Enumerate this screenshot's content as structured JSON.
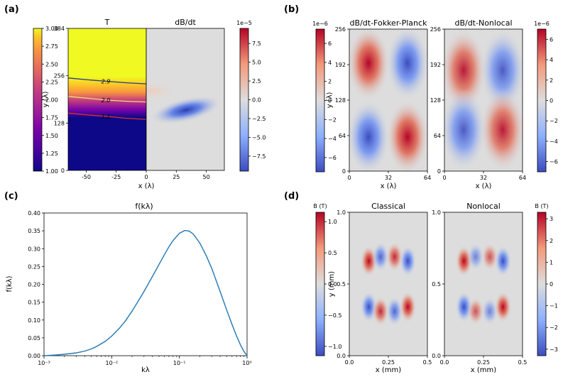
{
  "panel_labels": [
    "(a)",
    "(b)",
    "(c)",
    "(d)"
  ],
  "colors": {
    "line": "#1f77b4",
    "bg_gray": "#dcdcdc",
    "contour_2_9": "#1f3c8c",
    "contour_2_0": "#e8e07a",
    "contour_1_1": "#e03030"
  },
  "chart_data": [
    {
      "panel": "(a)",
      "type": "heatmap",
      "subplots": [
        {
          "title": "T",
          "xlim": [
            -65,
            0
          ],
          "ylim": [
            0,
            384
          ],
          "ylabel": "y (λ)",
          "yticks": [
            "0",
            "128",
            "256",
            "384"
          ],
          "xticks": [
            "-50",
            "-25",
            "0"
          ],
          "contours": [
            {
              "label": "2.9",
              "y": [
                250,
                245,
                241,
                237,
                234
              ]
            },
            {
              "label": "2.0",
              "y": [
                200,
                195,
                190,
                187,
                185
              ]
            },
            {
              "label": "1.1",
              "y": [
                155,
                150,
                146,
                141,
                138
              ]
            }
          ]
        },
        {
          "title": "dB/dt",
          "xlim": [
            0,
            65
          ],
          "xticks": [
            "25",
            "50"
          ]
        }
      ],
      "xlabel": "x (λ)",
      "colorbar_left": {
        "ticks": [
          "1.00",
          "1.25",
          "1.50",
          "1.75",
          "2.00",
          "2.25",
          "2.50",
          "2.75",
          "3.00"
        ],
        "range": [
          1.0,
          3.0
        ],
        "colormap": "plasma"
      },
      "colorbar_right": {
        "exponent": "1e−5",
        "ticks": [
          "−7.5",
          "−5.0",
          "−2.5",
          "0.0",
          "2.5",
          "5.0",
          "7.5"
        ],
        "range": [
          -9.5,
          9.5
        ],
        "colormap": "coolwarm"
      }
    },
    {
      "panel": "(b)",
      "type": "heatmap",
      "subplots": [
        {
          "title": "dB/dt-Fokker-Planck",
          "xlim": [
            0,
            64
          ],
          "ylim": [
            0,
            256
          ],
          "xticks": [
            "0",
            "32",
            "64"
          ],
          "yticks": [
            "0",
            "64",
            "128",
            "192",
            "256"
          ]
        },
        {
          "title": "dB/dt-Nonlocal",
          "xlim": [
            0,
            64
          ],
          "ylim": [
            0,
            256
          ],
          "xticks": [
            "0",
            "32",
            "64"
          ],
          "yticks": [
            "0",
            "64",
            "128",
            "192",
            "256"
          ]
        }
      ],
      "xlabel": "x (λ)",
      "ylabel": "y (λ)",
      "colorbar_left": {
        "exponent": "1e−6",
        "ticks": [
          "−6",
          "−4",
          "−2",
          "0",
          "2",
          "4",
          "6"
        ],
        "range": [
          -7.5,
          7.5
        ]
      },
      "colorbar_right": {
        "exponent": "1e−6",
        "ticks": [
          "−6",
          "−4",
          "−2",
          "0",
          "2",
          "4",
          "6"
        ],
        "range": [
          -7,
          7
        ]
      }
    },
    {
      "panel": "(c)",
      "type": "line",
      "title": "f(kλ)",
      "xlabel": "kλ",
      "ylabel": "f(kλ)",
      "xscale": "log",
      "xlim": [
        0.001,
        1
      ],
      "ylim": [
        0,
        0.4
      ],
      "xticks": [
        "10⁻³",
        "10⁻²",
        "10⁻¹",
        "10⁰"
      ],
      "yticks": [
        "0.00",
        "0.05",
        "0.10",
        "0.15",
        "0.20",
        "0.25",
        "0.30",
        "0.35",
        "0.40"
      ],
      "series": [
        {
          "x": [
            0.001,
            0.0015,
            0.002,
            0.003,
            0.004,
            0.005,
            0.006,
            0.008,
            0.01,
            0.013,
            0.016,
            0.02,
            0.025,
            0.03,
            0.04,
            0.05,
            0.06,
            0.07,
            0.08,
            0.1,
            0.12,
            0.14,
            0.16,
            0.2,
            0.25,
            0.3,
            0.4,
            0.5,
            0.6,
            0.7,
            0.8,
            0.9,
            1.0
          ],
          "y": [
            0.0,
            0.002,
            0.004,
            0.008,
            0.013,
            0.019,
            0.026,
            0.04,
            0.055,
            0.077,
            0.098,
            0.125,
            0.155,
            0.18,
            0.222,
            0.256,
            0.283,
            0.305,
            0.322,
            0.343,
            0.351,
            0.349,
            0.341,
            0.316,
            0.28,
            0.245,
            0.18,
            0.128,
            0.087,
            0.055,
            0.03,
            0.012,
            0.0
          ]
        }
      ]
    },
    {
      "panel": "(d)",
      "type": "heatmap",
      "subplots": [
        {
          "title": "Classical",
          "xlim": [
            0,
            0.5
          ],
          "ylim": [
            0,
            1.0
          ],
          "xticks": [
            "0.0",
            "0.25",
            "0.5"
          ],
          "yticks": [
            "0.0",
            "0.5",
            "1.0"
          ]
        },
        {
          "title": "Nonlocal",
          "xlim": [
            0,
            0.5
          ],
          "ylim": [
            0,
            1.0
          ],
          "xticks": [
            "0.0",
            "0.25",
            "0.5"
          ],
          "yticks": [
            "0.0",
            "0.5",
            "1.0"
          ]
        }
      ],
      "xlabel": "x (mm)",
      "ylabel": "y (mm)",
      "colorbar_left": {
        "label": "B (T)",
        "ticks": [
          "−1.0",
          "−0.5",
          "0.0",
          "0.5",
          "1.0"
        ],
        "range": [
          -1.15,
          1.15
        ]
      },
      "colorbar_right": {
        "label": "B (T)",
        "ticks": [
          "−3",
          "−2",
          "−1",
          "0",
          "1",
          "2",
          "3"
        ],
        "range": [
          -3.3,
          3.3
        ]
      },
      "blobs_classical": [
        {
          "x": 0.125,
          "y": 0.66,
          "sign": 1,
          "s": 1.0
        },
        {
          "x": 0.2,
          "y": 0.69,
          "sign": -1,
          "s": 0.75
        },
        {
          "x": 0.29,
          "y": 0.69,
          "sign": 1,
          "s": 0.75
        },
        {
          "x": 0.375,
          "y": 0.66,
          "sign": -1,
          "s": 1.0
        },
        {
          "x": 0.125,
          "y": 0.34,
          "sign": -1,
          "s": 1.0
        },
        {
          "x": 0.2,
          "y": 0.31,
          "sign": 1,
          "s": 0.75
        },
        {
          "x": 0.29,
          "y": 0.31,
          "sign": -1,
          "s": 0.75
        },
        {
          "x": 0.375,
          "y": 0.34,
          "sign": 1,
          "s": 1.0
        }
      ],
      "blobs_nonlocal": [
        {
          "x": 0.125,
          "y": 0.66,
          "sign": 1,
          "s": 1.0
        },
        {
          "x": 0.2,
          "y": 0.69,
          "sign": -1,
          "s": 0.45
        },
        {
          "x": 0.29,
          "y": 0.69,
          "sign": 1,
          "s": 0.45
        },
        {
          "x": 0.375,
          "y": 0.66,
          "sign": -1,
          "s": 1.0
        },
        {
          "x": 0.125,
          "y": 0.34,
          "sign": -1,
          "s": 1.0
        },
        {
          "x": 0.2,
          "y": 0.31,
          "sign": 1,
          "s": 0.45
        },
        {
          "x": 0.29,
          "y": 0.31,
          "sign": -1,
          "s": 0.45
        },
        {
          "x": 0.375,
          "y": 0.34,
          "sign": 1,
          "s": 1.0
        }
      ]
    }
  ]
}
